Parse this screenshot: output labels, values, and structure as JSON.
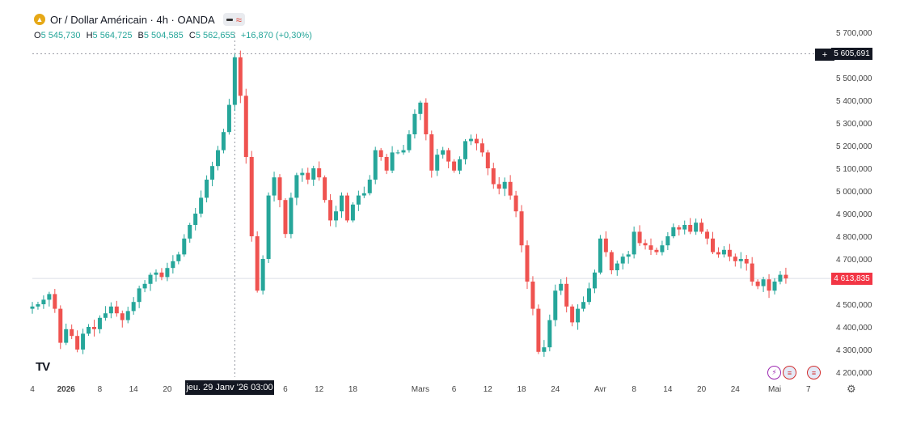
{
  "header": {
    "symbol_title": "Or / Dollar Américain · 4h · OANDA",
    "coin_glyph": "▲",
    "icons": [
      "gold-coin-icon",
      "minus-icon",
      "wave-icon"
    ]
  },
  "ohlc": {
    "o_label": "O",
    "o_value": "5 545,730",
    "h_label": "H",
    "h_value": "5 564,725",
    "b_label": "B",
    "b_value": "5 504,585",
    "c_label": "C",
    "c_value": "5 562,655",
    "change": "+16,870 (+0,30%)"
  },
  "crosshair": {
    "x_label": "jeu. 29 Janv '26   03:00",
    "price_label": "5 605,691",
    "price_value": 5605.691,
    "plus_glyph": "+"
  },
  "last_price": {
    "label": "4 613,835",
    "value": 4613.835
  },
  "logo": "TV",
  "events": [
    {
      "name": "lightning-event-icon",
      "glyph": "⚡",
      "color": "#9c27b0"
    },
    {
      "name": "us-flag-event-icon",
      "glyph": "≡",
      "color": "#d32f2f"
    },
    {
      "name": "us-flag-event-icon",
      "glyph": "≡",
      "color": "#d32f2f"
    }
  ],
  "settings_glyph": "⚙",
  "colors": {
    "up": "#26a69a",
    "down": "#ef5350",
    "text": "#131722",
    "axis": "#444444"
  },
  "chart_data": {
    "type": "candlestick",
    "ylim": [
      4170,
      5730
    ],
    "y_ticks": [
      {
        "v": 5700,
        "label": "5 700,000"
      },
      {
        "v": 5600,
        "label": "5 600,000"
      },
      {
        "v": 5500,
        "label": "5 500,000"
      },
      {
        "v": 5400,
        "label": "5 400,000"
      },
      {
        "v": 5300,
        "label": "5 300,000"
      },
      {
        "v": 5200,
        "label": "5 200,000"
      },
      {
        "v": 5100,
        "label": "5 100,000"
      },
      {
        "v": 5000,
        "label": "5 000,000"
      },
      {
        "v": 4900,
        "label": "4 900,000"
      },
      {
        "v": 4800,
        "label": "4 800,000"
      },
      {
        "v": 4700,
        "label": "4 700,000"
      },
      {
        "v": 4500,
        "label": "4 500,000"
      },
      {
        "v": 4400,
        "label": "4 400,000"
      },
      {
        "v": 4300,
        "label": "4 300,000"
      },
      {
        "v": 4200,
        "label": "4 200,000"
      }
    ],
    "x_ticks": [
      {
        "i": 0,
        "label": "4"
      },
      {
        "i": 6,
        "label": "2026",
        "bold": true
      },
      {
        "i": 12,
        "label": "8"
      },
      {
        "i": 18,
        "label": "14"
      },
      {
        "i": 24,
        "label": "20"
      },
      {
        "i": 45,
        "label": "6"
      },
      {
        "i": 51,
        "label": "12"
      },
      {
        "i": 57,
        "label": "18"
      },
      {
        "i": 69,
        "label": "Mars"
      },
      {
        "i": 75,
        "label": "6"
      },
      {
        "i": 81,
        "label": "12"
      },
      {
        "i": 87,
        "label": "18"
      },
      {
        "i": 93,
        "label": "24"
      },
      {
        "i": 101,
        "label": "Avr"
      },
      {
        "i": 107,
        "label": "8"
      },
      {
        "i": 113,
        "label": "14"
      },
      {
        "i": 119,
        "label": "20"
      },
      {
        "i": 125,
        "label": "24"
      },
      {
        "i": 132,
        "label": "Mai"
      },
      {
        "i": 138,
        "label": "7"
      }
    ],
    "crosshair_index": 36,
    "closes": [
      4490,
      4500,
      4520,
      4545,
      4480,
      4330,
      4390,
      4360,
      4300,
      4370,
      4400,
      4390,
      4440,
      4460,
      4490,
      4460,
      4430,
      4470,
      4510,
      4570,
      4590,
      4630,
      4640,
      4620,
      4660,
      4690,
      4720,
      4790,
      4850,
      4900,
      4970,
      5050,
      5110,
      5180,
      5260,
      5380,
      5590,
      5420,
      5150,
      4800,
      4560,
      4700,
      4980,
      5060,
      4960,
      4810,
      4970,
      5070,
      5080,
      5050,
      5100,
      5060,
      4960,
      4870,
      4910,
      4980,
      4870,
      4940,
      4980,
      4990,
      5050,
      5180,
      5150,
      5090,
      5170,
      5170,
      5180,
      5250,
      5340,
      5390,
      5250,
      5090,
      5160,
      5180,
      5130,
      5090,
      5140,
      5220,
      5230,
      5210,
      5170,
      5100,
      5030,
      5010,
      5040,
      4980,
      4910,
      4760,
      4600,
      4480,
      4290,
      4310,
      4430,
      4560,
      4590,
      4490,
      4420,
      4480,
      4510,
      4570,
      4640,
      4790,
      4730,
      4650,
      4680,
      4710,
      4720,
      4820,
      4770,
      4760,
      4740,
      4730,
      4760,
      4800,
      4840,
      4830,
      4850,
      4820,
      4860,
      4820,
      4790,
      4730,
      4720,
      4740,
      4710,
      4690,
      4700,
      4680,
      4600,
      4580,
      4610,
      4560,
      4600,
      4630,
      4614
    ]
  }
}
